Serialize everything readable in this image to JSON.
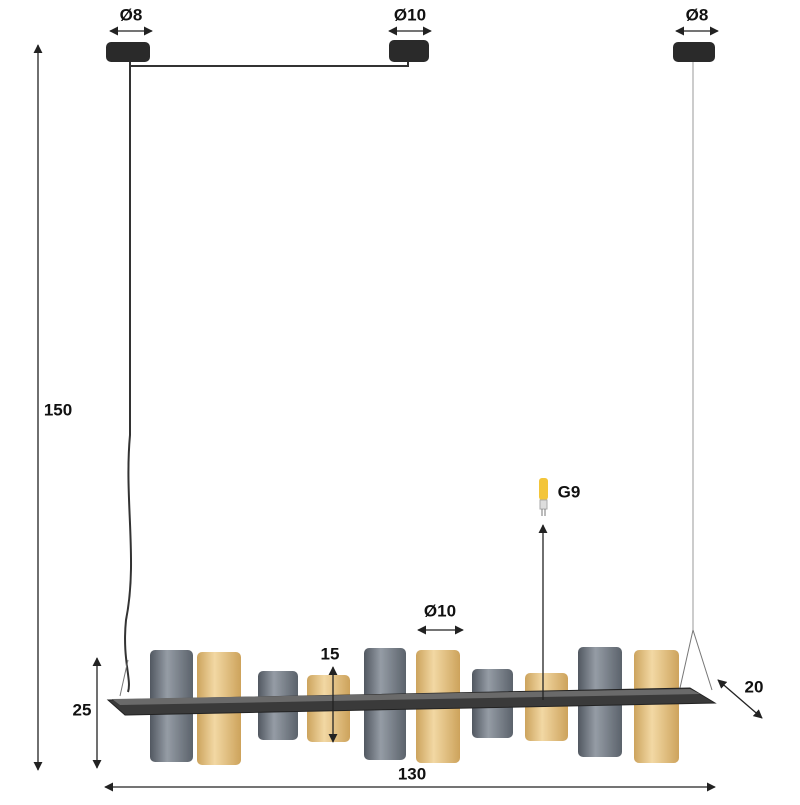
{
  "canopies": [
    {
      "label": "Ø8"
    },
    {
      "label": "Ø10"
    },
    {
      "label": "Ø8"
    }
  ],
  "dimensions": {
    "height": "150",
    "bar_height": "25",
    "glass_height": "15",
    "glass_diameter": "Ø10",
    "depth": "20",
    "width": "130"
  },
  "bulb": {
    "label": "G9"
  }
}
